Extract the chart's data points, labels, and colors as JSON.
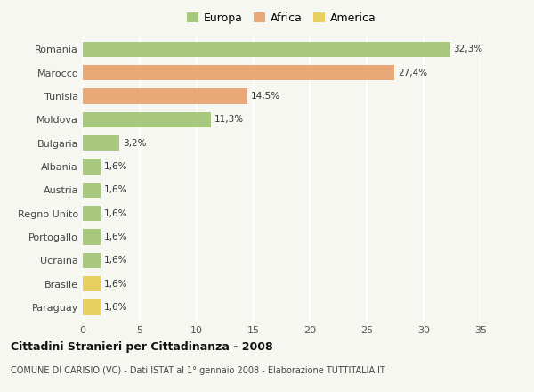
{
  "categories": [
    "Romania",
    "Marocco",
    "Tunisia",
    "Moldova",
    "Bulgaria",
    "Albania",
    "Austria",
    "Regno Unito",
    "Portogallo",
    "Ucraina",
    "Brasile",
    "Paraguay"
  ],
  "values": [
    32.3,
    27.4,
    14.5,
    11.3,
    3.2,
    1.6,
    1.6,
    1.6,
    1.6,
    1.6,
    1.6,
    1.6
  ],
  "labels": [
    "32,3%",
    "27,4%",
    "14,5%",
    "11,3%",
    "3,2%",
    "1,6%",
    "1,6%",
    "1,6%",
    "1,6%",
    "1,6%",
    "1,6%",
    "1,6%"
  ],
  "bar_colors": [
    "#a8c880",
    "#e8a878",
    "#e8a878",
    "#a8c880",
    "#a8c880",
    "#a8c880",
    "#a8c880",
    "#a8c880",
    "#a8c880",
    "#a8c880",
    "#e8d060",
    "#e8d060"
  ],
  "legend_labels": [
    "Europa",
    "Africa",
    "America"
  ],
  "legend_colors": [
    "#a8c880",
    "#e8a878",
    "#e8d060"
  ],
  "xlim": [
    0,
    35
  ],
  "xticks": [
    0,
    5,
    10,
    15,
    20,
    25,
    30,
    35
  ],
  "title": "Cittadini Stranieri per Cittadinanza - 2008",
  "subtitle": "COMUNE DI CARISIO (VC) - Dati ISTAT al 1° gennaio 2008 - Elaborazione TUTTITALIA.IT",
  "background_color": "#f7f7f2",
  "grid_color": "#ffffff",
  "bar_height": 0.65
}
